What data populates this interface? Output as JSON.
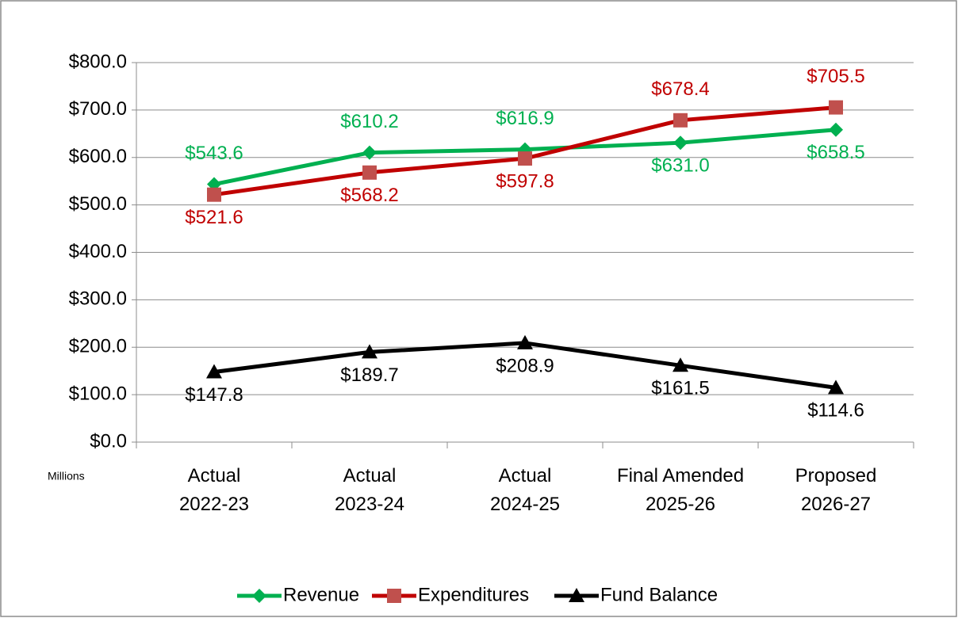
{
  "chart_data": {
    "type": "line",
    "y_unit_label": "Millions",
    "categories": [
      "Actual 2022-23",
      "Actual 2023-24",
      "Actual 2024-25",
      "Final Amended 2025-26",
      "Proposed 2026-27"
    ],
    "series": [
      {
        "name": "Revenue",
        "color": "#00b050",
        "marker_color": "#00b050",
        "marker": "diamond",
        "values": [
          543.6,
          610.2,
          616.9,
          631.0,
          658.5
        ],
        "value_labels": [
          "$543.6",
          "$610.2",
          "$616.9",
          "$631.0",
          "$658.5"
        ]
      },
      {
        "name": "Expenditures",
        "color": "#c00000",
        "marker_color": "#c0504d",
        "marker": "square",
        "values": [
          521.6,
          568.2,
          597.8,
          678.4,
          705.5
        ],
        "value_labels": [
          "$521.6",
          "$568.2",
          "$597.8",
          "$678.4",
          "$705.5"
        ]
      },
      {
        "name": "Fund Balance",
        "color": "#000000",
        "marker_color": "#000000",
        "marker": "triangle",
        "values": [
          147.8,
          189.7,
          208.9,
          161.5,
          114.6
        ],
        "value_labels": [
          "$147.8",
          "$189.7",
          "$208.9",
          "$161.5",
          "$114.6"
        ]
      }
    ],
    "ylim": [
      0,
      800
    ],
    "yticks": [
      {
        "value": 0,
        "label": "$0.0"
      },
      {
        "value": 100,
        "label": "$100.0"
      },
      {
        "value": 200,
        "label": "$200.0"
      },
      {
        "value": 300,
        "label": "$300.0"
      },
      {
        "value": 400,
        "label": "$400.0"
      },
      {
        "value": 500,
        "label": "$500.0"
      },
      {
        "value": 600,
        "label": "$600.0"
      },
      {
        "value": 700,
        "label": "$700.0"
      },
      {
        "value": 800,
        "label": "$800.0"
      }
    ],
    "grid": true,
    "legend": "bottom"
  }
}
